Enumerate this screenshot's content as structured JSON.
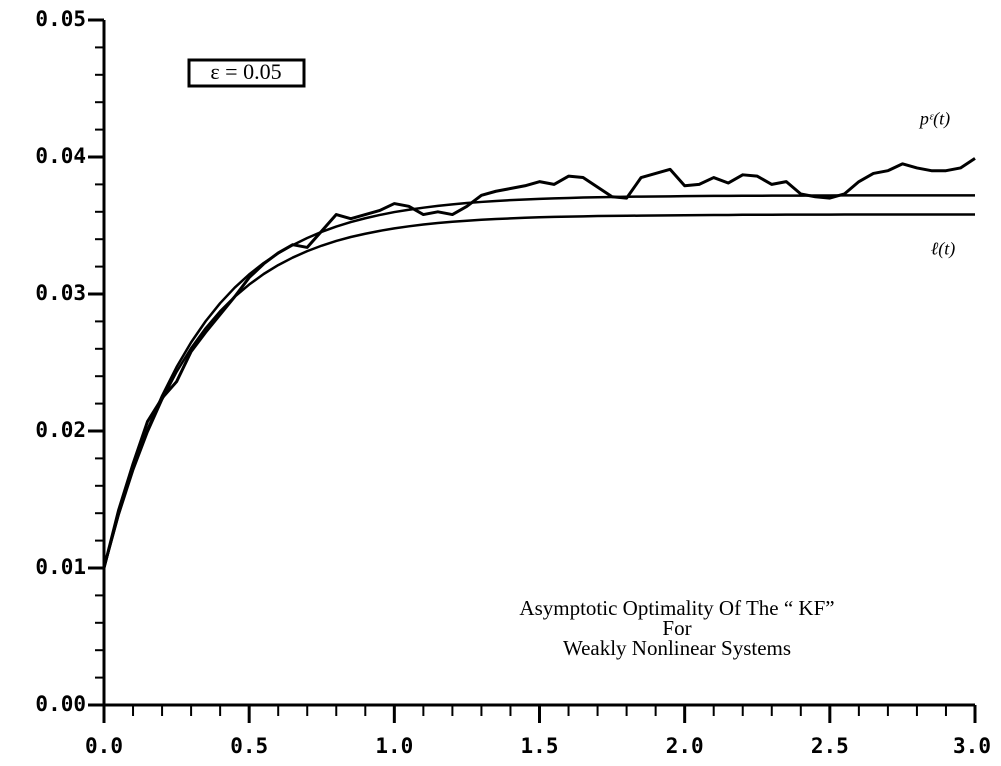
{
  "chart_data": {
    "type": "line",
    "box_label": "ε = 0.05",
    "annotation_lines": [
      "Asymptotic Optimality Of The “ KF”",
      "For",
      "Weakly Nonlinear Systems"
    ],
    "x": [
      0,
      0.05,
      0.1,
      0.15,
      0.2,
      0.25,
      0.3,
      0.35,
      0.4,
      0.45,
      0.5,
      0.55,
      0.6,
      0.65,
      0.7,
      0.75,
      0.8,
      0.85,
      0.9,
      0.95,
      1.0,
      1.05,
      1.1,
      1.15,
      1.2,
      1.25,
      1.3,
      1.35,
      1.4,
      1.45,
      1.5,
      1.55,
      1.6,
      1.65,
      1.7,
      1.75,
      1.8,
      1.85,
      1.9,
      1.95,
      2.0,
      2.05,
      2.1,
      2.15,
      2.2,
      2.25,
      2.3,
      2.35,
      2.4,
      2.45,
      2.5,
      2.55,
      2.6,
      2.65,
      2.7,
      2.75,
      2.8,
      2.85,
      2.9,
      2.95,
      3.0
    ],
    "series": [
      {
        "name": "pᵋ(t)",
        "color": "#000000",
        "values": [
          0.01,
          0.0142,
          0.0176,
          0.0207,
          0.0224,
          0.0236,
          0.0258,
          0.0272,
          0.0285,
          0.0298,
          0.0312,
          0.0322,
          0.033,
          0.0336,
          0.0334,
          0.0346,
          0.0358,
          0.0355,
          0.0358,
          0.0361,
          0.0366,
          0.0364,
          0.0358,
          0.036,
          0.0358,
          0.0364,
          0.0372,
          0.0375,
          0.0377,
          0.0379,
          0.0382,
          0.038,
          0.0386,
          0.0385,
          0.0378,
          0.0371,
          0.037,
          0.0385,
          0.0388,
          0.0391,
          0.0379,
          0.038,
          0.0385,
          0.0381,
          0.0387,
          0.0386,
          0.038,
          0.0382,
          0.0373,
          0.0371,
          0.037,
          0.0373,
          0.0382,
          0.0388,
          0.039,
          0.0395,
          0.0392,
          0.039,
          0.039,
          0.0392,
          0.0399
        ]
      },
      {
        "color": "#000000",
        "values": [
          0.01,
          0.01391,
          0.01725,
          0.02012,
          0.02257,
          0.02467,
          0.02647,
          0.02801,
          0.02933,
          0.03046,
          0.03143,
          0.03226,
          0.03297,
          0.03357,
          0.03409,
          0.03454,
          0.03492,
          0.03525,
          0.03553,
          0.03577,
          0.03598,
          0.03615,
          0.0363,
          0.03643,
          0.03654,
          0.03664,
          0.03672,
          0.03679,
          0.03685,
          0.0369,
          0.03694,
          0.03698,
          0.03701,
          0.03704,
          0.03706,
          0.03708,
          0.0371,
          0.03711,
          0.03712,
          0.03713,
          0.03714,
          0.03715,
          0.03716,
          0.03716,
          0.03717,
          0.03717,
          0.03718,
          0.03718,
          0.03718,
          0.03719,
          0.03719,
          0.0372,
          0.0372,
          0.0372,
          0.0372,
          0.0372,
          0.0372,
          0.0372,
          0.0372,
          0.0372,
          0.0372
        ]
      },
      {
        "name": "ℓ(t)",
        "color": "#000000",
        "values": [
          0.01,
          0.01386,
          0.01714,
          0.01993,
          0.0223,
          0.02432,
          0.02604,
          0.0275,
          0.02874,
          0.0298,
          0.03069,
          0.03146,
          0.03211,
          0.03266,
          0.03313,
          0.03353,
          0.03387,
          0.03416,
          0.0344,
          0.03461,
          0.03479,
          0.03494,
          0.03507,
          0.03518,
          0.03527,
          0.03535,
          0.03542,
          0.03547,
          0.03552,
          0.03557,
          0.0356,
          0.03563,
          0.03565,
          0.03567,
          0.03569,
          0.0357,
          0.03571,
          0.03572,
          0.03573,
          0.03574,
          0.03575,
          0.03576,
          0.03577,
          0.03577,
          0.03578,
          0.03578,
          0.03578,
          0.03579,
          0.03579,
          0.03579,
          0.03579,
          0.0358,
          0.0358,
          0.0358,
          0.0358,
          0.0358,
          0.0358,
          0.0358,
          0.0358,
          0.0358,
          0.0358
        ]
      }
    ],
    "xlim": [
      0,
      3.0
    ],
    "ylim": [
      0,
      0.05
    ],
    "xticks": [
      {
        "value": 0,
        "label": "0.0"
      },
      0.5,
      {
        "value": 1,
        "label": "1.0"
      },
      1.5,
      {
        "value": 2,
        "label": "2.0"
      },
      2.5,
      {
        "value": 3,
        "label": "3.0"
      }
    ],
    "yticks": [
      {
        "value": 0,
        "label": "0.00"
      },
      0.01,
      0.02,
      0.03,
      0.04,
      0.05
    ],
    "xminorticks": [
      0.1,
      0.2,
      0.3,
      0.4,
      0.6,
      0.7,
      0.8,
      0.9,
      1.1,
      1.2,
      1.3,
      1.4,
      1.6,
      1.7,
      1.8,
      1.9,
      2.1,
      2.2,
      2.3,
      2.4,
      2.6,
      2.7,
      2.8,
      2.9
    ],
    "yminorticks": [
      0.002,
      0.004,
      0.006,
      0.008,
      0.012,
      0.014,
      0.016,
      0.018,
      0.022,
      0.024,
      0.026,
      0.028,
      0.032,
      0.034,
      0.036,
      0.038,
      0.042,
      0.044,
      0.046,
      0.048
    ],
    "grid": false
  }
}
